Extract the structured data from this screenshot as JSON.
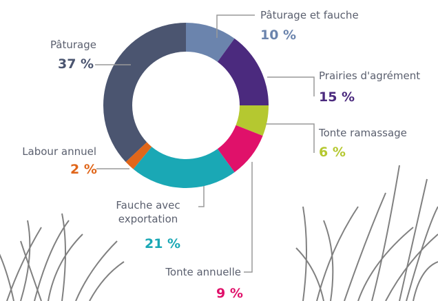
{
  "chart_data": {
    "type": "donut",
    "categories": [
      "Pâturage et fauche",
      "Prairies d'agrément",
      "Tonte ramassage",
      "Tonte annuelle",
      "Fauche avec exportation",
      "Labour annuel",
      "Pâturage"
    ],
    "values": [
      10,
      15,
      6,
      9,
      21,
      2,
      37
    ],
    "value_labels": [
      "10 %",
      "15 %",
      "6 %",
      "9 %",
      "21 %",
      "2 %",
      "37 %"
    ],
    "colors": [
      "#6b84ad",
      "#4b2a7e",
      "#b5c830",
      "#e0116a",
      "#1aa8b5",
      "#e0661a",
      "#4b5570"
    ]
  }
}
